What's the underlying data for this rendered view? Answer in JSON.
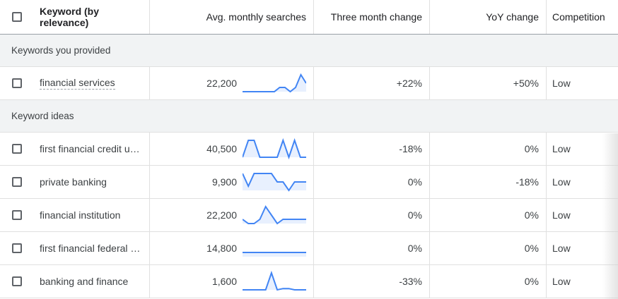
{
  "header": {
    "keyword": "Keyword (by relevance)",
    "avg": "Avg. monthly searches",
    "three": "Three month change",
    "yoy": "YoY change",
    "competition": "Competition"
  },
  "sections": {
    "provided": "Keywords you provided",
    "ideas": "Keyword ideas"
  },
  "colors": {
    "spark_line": "#4285f4",
    "spark_fill": "#e8f0fe"
  },
  "provided_rows": [
    {
      "keyword": "financial services",
      "searches": "22,200",
      "three": "+22%",
      "yoy": "+50%",
      "competition": "Low",
      "trend": [
        0,
        0,
        0,
        0,
        0,
        0,
        0,
        1,
        1,
        0,
        1,
        4,
        2
      ]
    }
  ],
  "idea_rows": [
    {
      "keyword": "first financial credit un...",
      "searches": "40,500",
      "three": "-18%",
      "yoy": "0%",
      "competition": "Low",
      "trend": [
        0,
        4,
        4,
        0,
        0,
        0,
        0,
        4,
        0,
        4,
        0,
        0
      ]
    },
    {
      "keyword": "private banking",
      "searches": "9,900",
      "three": "0%",
      "yoy": "-18%",
      "competition": "Low",
      "trend": [
        4,
        1,
        4,
        4,
        4,
        4,
        2,
        2,
        0,
        2,
        2,
        2
      ]
    },
    {
      "keyword": "financial institution",
      "searches": "22,200",
      "three": "0%",
      "yoy": "0%",
      "competition": "Low",
      "trend": [
        1,
        0,
        0,
        1,
        4,
        2,
        0,
        1,
        1,
        1,
        1,
        1
      ]
    },
    {
      "keyword": "first financial federal c...",
      "searches": "14,800",
      "three": "0%",
      "yoy": "0%",
      "competition": "Low",
      "trend": [
        1,
        1,
        1,
        1,
        1,
        1,
        1,
        1,
        1,
        1,
        1,
        1
      ]
    },
    {
      "keyword": "banking and finance",
      "searches": "1,600",
      "three": "-33%",
      "yoy": "0%",
      "competition": "Low",
      "trend": [
        0,
        0,
        0,
        0,
        0,
        4,
        0,
        0.3,
        0.3,
        0,
        0,
        0
      ]
    }
  ]
}
